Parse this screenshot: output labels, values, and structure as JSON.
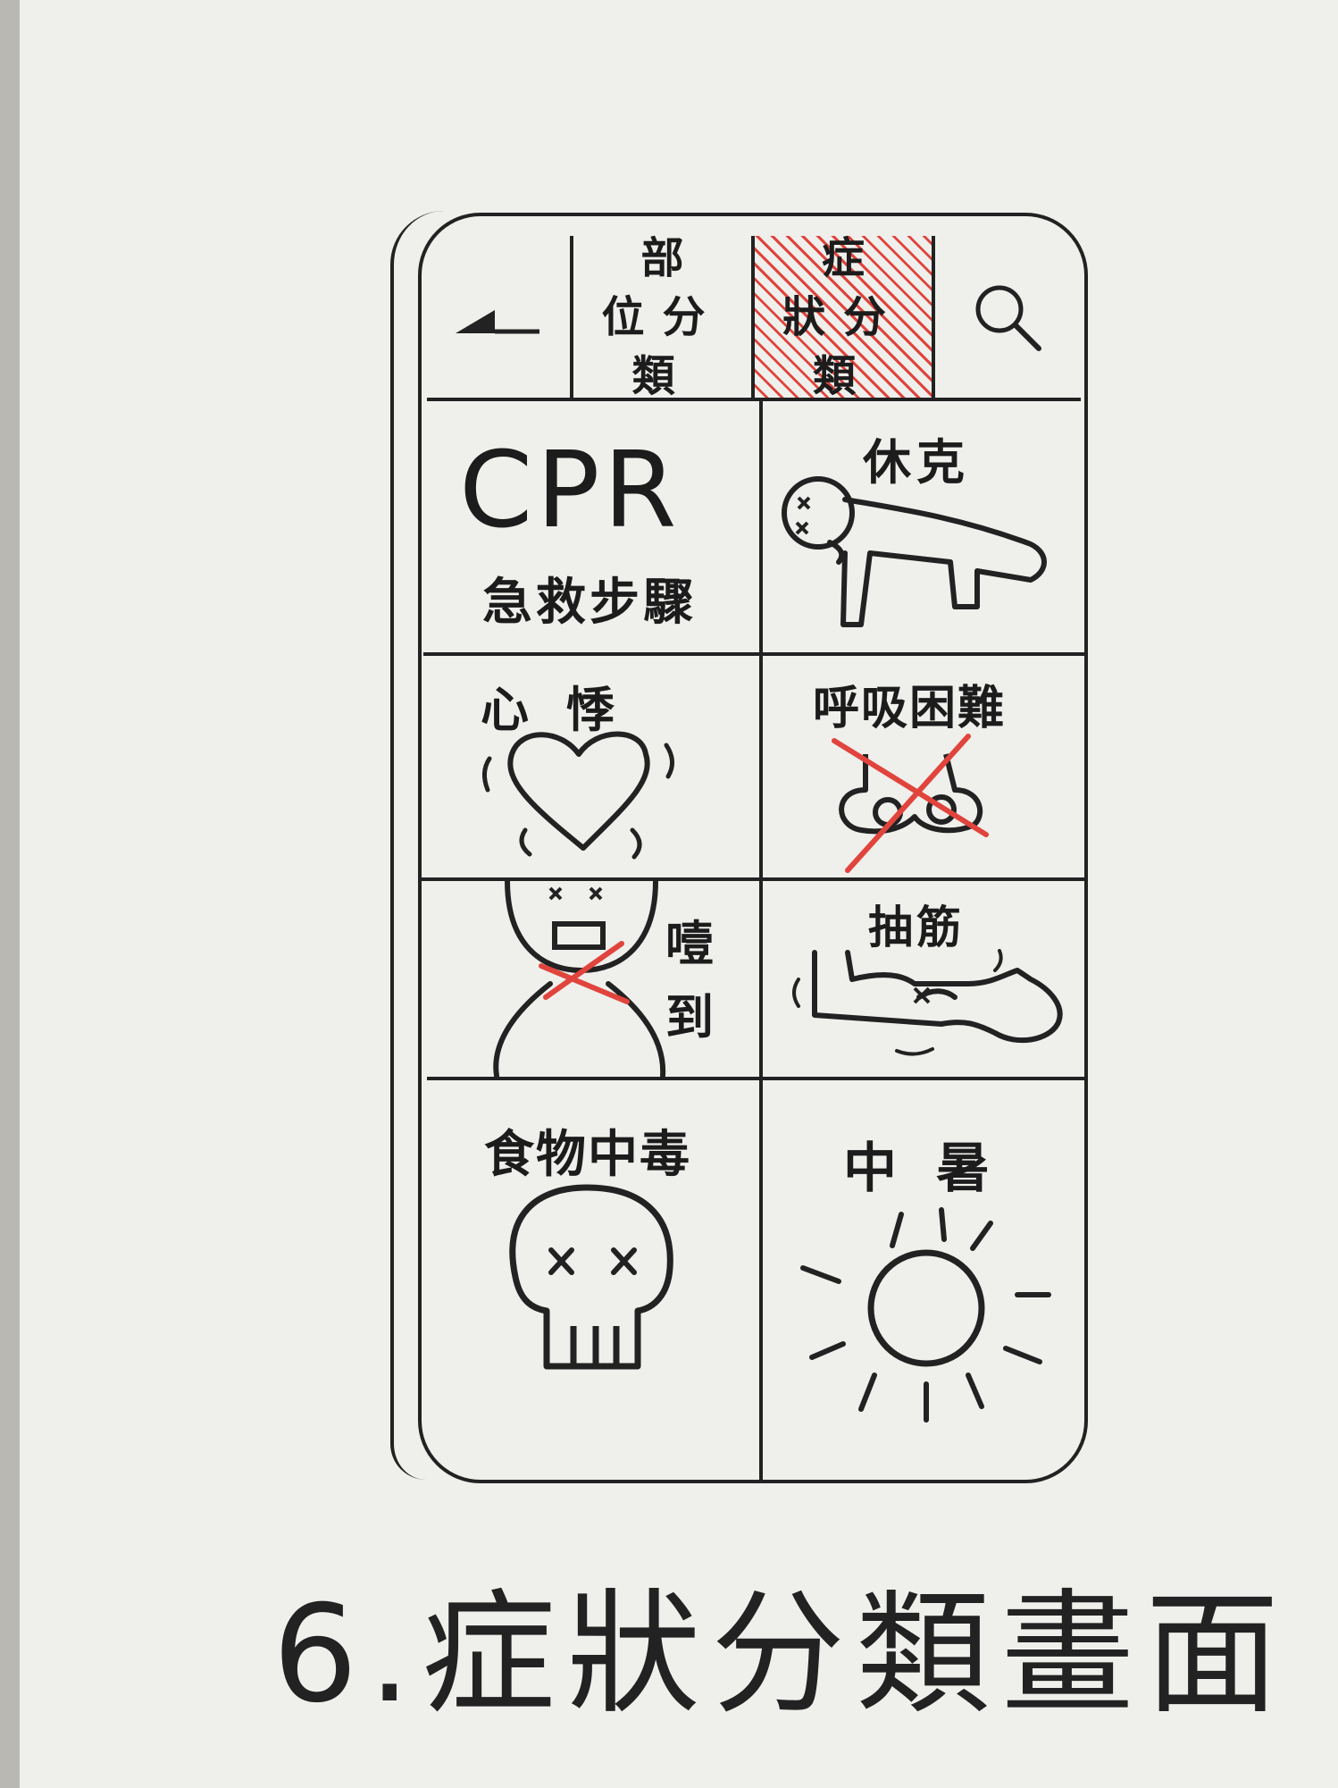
{
  "tabs": {
    "back_icon": "back-arrow-icon",
    "part_category": "部位分類",
    "symptom_category": "症狀分類",
    "search_icon": "search-icon",
    "active": "symptom_category",
    "active_color": "#e0443c"
  },
  "tiles": {
    "cpr": {
      "title": "CPR",
      "subtitle": "急救步驟"
    },
    "shock": {
      "label": "休克",
      "icon": "collapsed-person-icon"
    },
    "palpitation": {
      "label": "心悸",
      "icon": "trembling-heart-icon"
    },
    "breathing": {
      "label": "呼吸困難",
      "icon": "crossed-nose-icon"
    },
    "choking": {
      "label": "噎到",
      "icon": "choking-person-icon"
    },
    "cramp": {
      "label": "抽筋",
      "icon": "cramping-arm-icon"
    },
    "food_poisoning": {
      "label": "食物中毒",
      "icon": "skull-icon"
    },
    "heatstroke": {
      "label": "中暑",
      "icon": "sun-icon"
    }
  },
  "caption": "6.症狀分類畫面",
  "colors": {
    "ink": "#222222",
    "accent": "#e0443c",
    "paper": "#efefec"
  }
}
